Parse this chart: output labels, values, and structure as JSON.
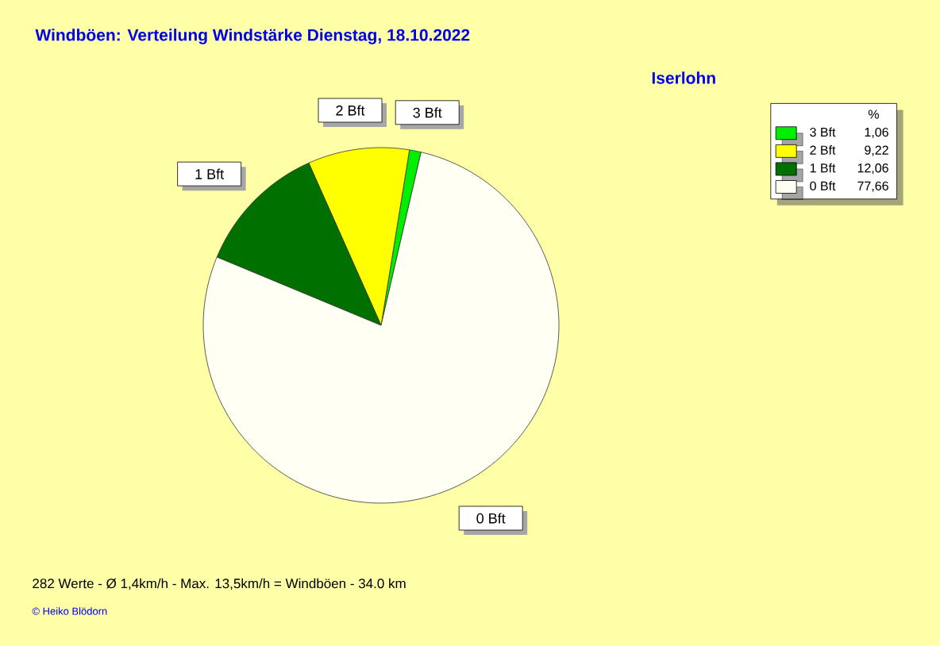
{
  "chart_data": {
    "type": "pie",
    "title": "Windböen: Verteilung Windstärke  Dienstag, 18.10.2022",
    "subtitle": "Iserlohn",
    "categories": [
      "3 Bft",
      "2 Bft",
      "1 Bft",
      "0 Bft"
    ],
    "values": [
      1.06,
      9.22,
      12.06,
      77.66
    ],
    "value_labels": [
      "1,06",
      "9,22",
      "12,06",
      "77,66"
    ],
    "colors": [
      "#00ee00",
      "#ffff00",
      "#007000",
      "#fffff4"
    ],
    "legend": "top right",
    "legend_title": "%",
    "annotations": [
      "282 Werte   -   Ø 1,4km/h  -  Max. 13,5km/h = Windböen   -   34.0 km",
      "© Heiko Blödorn"
    ]
  }
}
